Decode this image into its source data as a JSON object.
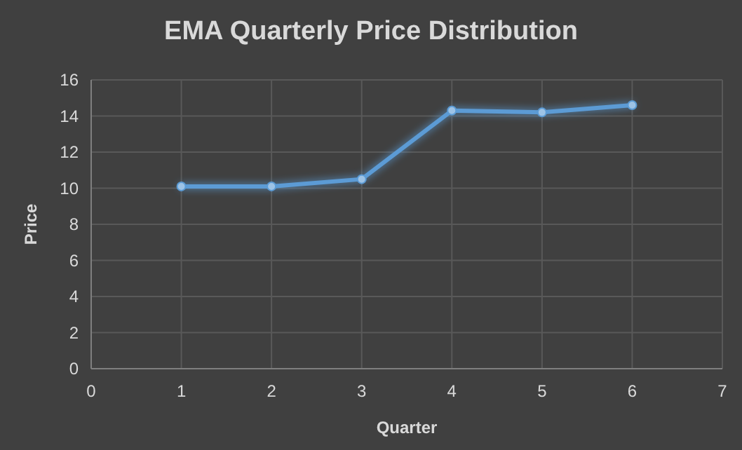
{
  "chart_data": {
    "type": "line",
    "title": "EMA Quarterly Price Distribution",
    "xlabel": "Quarter",
    "ylabel": "Price",
    "x": [
      1,
      2,
      3,
      4,
      5,
      6
    ],
    "series": [
      {
        "color": "#5b9bd5",
        "values": [
          10.1,
          10.1,
          10.5,
          14.3,
          14.2,
          14.6
        ]
      }
    ],
    "xlim": [
      0,
      7
    ],
    "xticks": [
      0,
      1,
      2,
      3,
      4,
      5,
      6,
      7
    ],
    "ylim": [
      0,
      16
    ],
    "yticks": [
      0,
      2,
      4,
      6,
      8,
      10,
      12,
      14,
      16
    ],
    "grid": true,
    "marker": "circle",
    "line_style": "solid"
  }
}
